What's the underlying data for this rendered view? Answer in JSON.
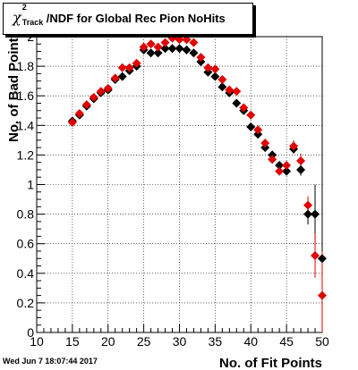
{
  "title": {
    "chi_symbol": "χ",
    "sup": "2",
    "sub": "Track",
    "rest": "/NDF for Global Rec Pion NoHits"
  },
  "timestamp": "Wed Jun  7 18:07:44 2017",
  "chart_data": {
    "type": "scatter",
    "title": "χ²_Track/NDF for Global Rec Pion NoHits",
    "xlabel": "No. of Fit Points",
    "ylabel": "No. of Bad Points",
    "xlim": [
      10,
      50
    ],
    "ylim": [
      0,
      2
    ],
    "x_ticks": [
      10,
      15,
      20,
      25,
      30,
      35,
      40,
      45,
      50
    ],
    "y_ticks": [
      0,
      0.2,
      0.4,
      0.6,
      0.8,
      1,
      1.2,
      1.4,
      1.6,
      1.8,
      2
    ],
    "grid": true,
    "series": [
      {
        "color": "#000000",
        "marker": "diamond",
        "points": [
          {
            "x": 15,
            "y": 1.43
          },
          {
            "x": 16,
            "y": 1.47
          },
          {
            "x": 17,
            "y": 1.53
          },
          {
            "x": 18,
            "y": 1.58
          },
          {
            "x": 19,
            "y": 1.62
          },
          {
            "x": 20,
            "y": 1.64
          },
          {
            "x": 21,
            "y": 1.71
          },
          {
            "x": 22,
            "y": 1.73
          },
          {
            "x": 23,
            "y": 1.77
          },
          {
            "x": 24,
            "y": 1.8
          },
          {
            "x": 25,
            "y": 1.91
          },
          {
            "x": 26,
            "y": 1.89
          },
          {
            "x": 27,
            "y": 1.89
          },
          {
            "x": 28,
            "y": 1.92
          },
          {
            "x": 29,
            "y": 1.92
          },
          {
            "x": 30,
            "y": 1.92
          },
          {
            "x": 31,
            "y": 1.91
          },
          {
            "x": 32,
            "y": 1.89
          },
          {
            "x": 33,
            "y": 1.83
          },
          {
            "x": 34,
            "y": 1.76
          },
          {
            "x": 35,
            "y": 1.73
          },
          {
            "x": 36,
            "y": 1.66
          },
          {
            "x": 37,
            "y": 1.62
          },
          {
            "x": 38,
            "y": 1.55
          },
          {
            "x": 39,
            "y": 1.5
          },
          {
            "x": 40,
            "y": 1.39
          },
          {
            "x": 41,
            "y": 1.34
          },
          {
            "x": 42,
            "y": 1.25
          },
          {
            "x": 43,
            "y": 1.2
          },
          {
            "x": 44,
            "y": 1.13
          },
          {
            "x": 45,
            "y": 1.09
          },
          {
            "x": 46,
            "y": 1.24,
            "err": 0.03
          },
          {
            "x": 47,
            "y": 1.1,
            "err": 0.04
          },
          {
            "x": 48,
            "y": 0.8,
            "err": 0.07
          },
          {
            "x": 49,
            "y": 0.8,
            "err": 0.2
          },
          {
            "x": 50,
            "y": 0.5,
            "err": 0.5
          }
        ]
      },
      {
        "color": "#e00000",
        "marker": "diamond",
        "points": [
          {
            "x": 15,
            "y": 1.42
          },
          {
            "x": 16,
            "y": 1.48
          },
          {
            "x": 17,
            "y": 1.54
          },
          {
            "x": 18,
            "y": 1.59
          },
          {
            "x": 19,
            "y": 1.63
          },
          {
            "x": 20,
            "y": 1.65
          },
          {
            "x": 21,
            "y": 1.72
          },
          {
            "x": 22,
            "y": 1.79
          },
          {
            "x": 23,
            "y": 1.79
          },
          {
            "x": 24,
            "y": 1.82
          },
          {
            "x": 25,
            "y": 1.93
          },
          {
            "x": 26,
            "y": 1.95
          },
          {
            "x": 27,
            "y": 1.93
          },
          {
            "x": 28,
            "y": 1.96
          },
          {
            "x": 29,
            "y": 1.99
          },
          {
            "x": 30,
            "y": 1.98
          },
          {
            "x": 31,
            "y": 1.98
          },
          {
            "x": 32,
            "y": 1.96
          },
          {
            "x": 33,
            "y": 1.86
          },
          {
            "x": 34,
            "y": 1.79
          },
          {
            "x": 35,
            "y": 1.78
          },
          {
            "x": 36,
            "y": 1.71
          },
          {
            "x": 37,
            "y": 1.64
          },
          {
            "x": 38,
            "y": 1.63
          },
          {
            "x": 39,
            "y": 1.52
          },
          {
            "x": 40,
            "y": 1.47
          },
          {
            "x": 41,
            "y": 1.37
          },
          {
            "x": 42,
            "y": 1.28
          },
          {
            "x": 43,
            "y": 1.17
          },
          {
            "x": 44,
            "y": 1.09
          },
          {
            "x": 45,
            "y": 1.13
          },
          {
            "x": 46,
            "y": 1.26,
            "err": 0.04
          },
          {
            "x": 47,
            "y": 1.16,
            "err": 0.05
          },
          {
            "x": 48,
            "y": 0.86,
            "err": 0.06
          },
          {
            "x": 49,
            "y": 0.52,
            "err": 0.15
          },
          {
            "x": 50,
            "y": 0.25,
            "err": 0.3
          }
        ]
      }
    ]
  }
}
